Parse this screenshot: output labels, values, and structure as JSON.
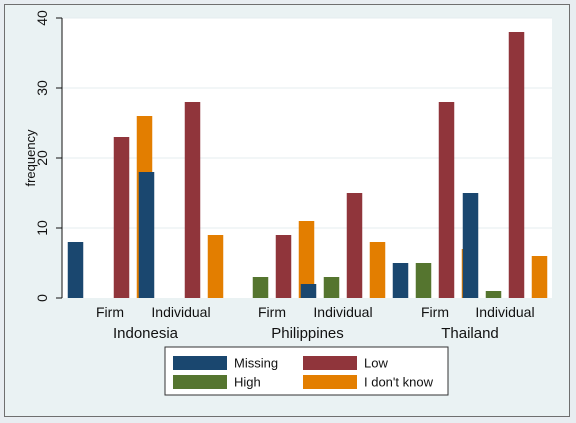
{
  "chart_data": {
    "type": "bar",
    "ylabel": "frequency",
    "ylim": [
      0,
      40
    ],
    "yticks": [
      0,
      10,
      20,
      30,
      40
    ],
    "grid": true,
    "legend_position": "bottom",
    "groups": [
      {
        "country": "Indonesia",
        "subgroups": [
          "Firm",
          "Individual"
        ]
      },
      {
        "country": "Philippines",
        "subgroups": [
          "Firm",
          "Individual"
        ]
      },
      {
        "country": "Thailand",
        "subgroups": [
          "Firm",
          "Individual"
        ]
      }
    ],
    "categories": [
      "Indonesia Firm",
      "Indonesia Individual",
      "Philippines Firm",
      "Philippines Individual",
      "Thailand Firm",
      "Thailand Individual"
    ],
    "series": [
      {
        "name": "Missing",
        "color": "#1a476f",
        "values": [
          8,
          18,
          0,
          2,
          5,
          15
        ]
      },
      {
        "name": "High",
        "color": "#55752f",
        "values": [
          0,
          0,
          3,
          3,
          5,
          1
        ]
      },
      {
        "name": "Low",
        "color": "#90353b",
        "values": [
          23,
          28,
          9,
          15,
          28,
          38
        ]
      },
      {
        "name": "I don't know",
        "color": "#e37e00",
        "values": [
          26,
          9,
          11,
          8,
          7,
          6
        ]
      }
    ],
    "legend": [
      {
        "name": "Missing",
        "color": "#1a476f"
      },
      {
        "name": "Low",
        "color": "#90353b"
      },
      {
        "name": "High",
        "color": "#55752f"
      },
      {
        "name": "I don't know",
        "color": "#e37e00"
      }
    ]
  }
}
